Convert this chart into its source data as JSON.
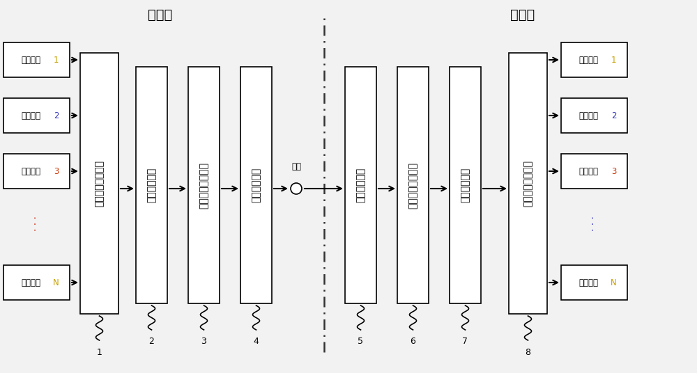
{
  "bg_color": "#f2f2f2",
  "title_send": "发送端",
  "title_recv": "接收端",
  "ch_labels": [
    "线圈通道",
    "线圈通道",
    "线圈通道",
    "线圈通道"
  ],
  "ch_numbers": [
    "1",
    "2",
    "3",
    "N"
  ],
  "ch_num_colors": [
    "#c8a000",
    "#3333bb",
    "#cc3300",
    "#c8a000"
  ],
  "box1_text": "多路数据复用单元",
  "box2_text": "数据封装单元",
  "box3_text": "高速串行发送单元",
  "box4_text": "光纤发送单元",
  "fiber_label": "光纤",
  "box5_text": "光纤接收单元",
  "box6_text": "高速串行接收单元",
  "box7_text": "数据解包单元",
  "box8_text": "多路数据分接单元",
  "ref_numbers": [
    "1",
    "2",
    "3",
    "4",
    "5",
    "6",
    "7",
    "8"
  ],
  "dots_color_left": "#cc2200",
  "dots_color_right": "#3333bb"
}
